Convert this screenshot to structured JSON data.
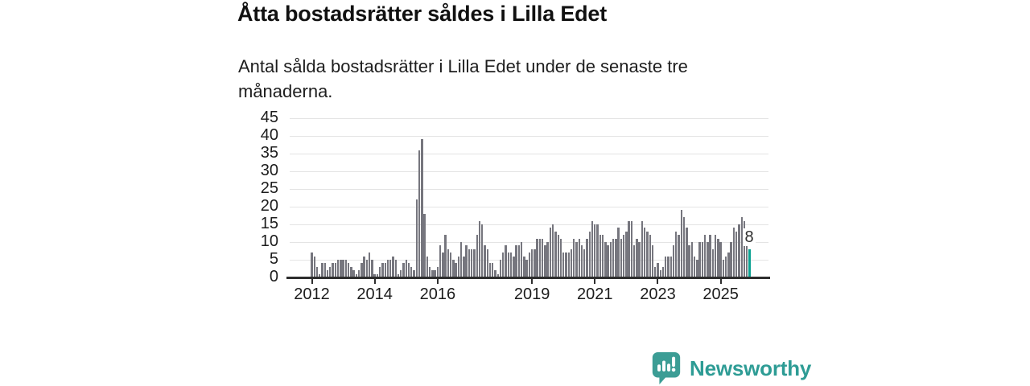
{
  "header": {
    "title": "Åtta bostadsrätter såldes i Lilla Edet",
    "subtitle_lines": [
      "Antal sålda bostadsrätter i Lilla Edet under de senaste tre",
      "månaderna."
    ]
  },
  "chart_data": {
    "type": "bar",
    "title": "Åtta bostadsrätter såldes i Lilla Edet",
    "xlabel": "",
    "ylabel": "",
    "ylim": [
      0,
      45
    ],
    "y_ticks": [
      0,
      5,
      10,
      15,
      20,
      25,
      30,
      35,
      40,
      45
    ],
    "x_tick_labels": [
      "2012",
      "2014",
      "2016",
      "2019",
      "2021",
      "2023",
      "2025"
    ],
    "x_tick_month_index": [
      0,
      24,
      48,
      84,
      108,
      132,
      156
    ],
    "grid": true,
    "legend": false,
    "values": [
      7,
      6,
      3,
      1,
      4,
      4,
      2,
      3,
      4,
      4,
      5,
      5,
      5,
      5,
      4,
      3,
      2,
      1,
      2,
      4,
      6,
      5,
      7,
      5,
      1,
      1,
      3,
      4,
      4,
      5,
      5,
      6,
      5,
      1,
      2,
      4,
      5,
      4,
      3,
      2,
      22,
      36,
      39,
      18,
      6,
      3,
      2,
      2,
      3,
      9,
      7,
      12,
      8,
      7,
      5,
      4,
      6,
      10,
      6,
      9,
      8,
      8,
      8,
      12,
      16,
      15,
      9,
      8,
      4,
      4,
      2,
      1,
      5,
      7,
      9,
      7,
      7,
      6,
      9,
      9,
      10,
      6,
      5,
      7,
      8,
      8,
      11,
      11,
      11,
      9,
      10,
      14,
      15,
      13,
      12,
      11,
      7,
      7,
      7,
      8,
      11,
      10,
      11,
      9,
      8,
      11,
      13,
      16,
      15,
      15,
      12,
      12,
      10,
      9,
      10,
      11,
      11,
      14,
      11,
      12,
      13,
      16,
      16,
      9,
      11,
      10,
      16,
      14,
      13,
      12,
      9,
      3,
      4,
      2,
      3,
      6,
      6,
      6,
      9,
      13,
      12,
      19,
      17,
      14,
      9,
      10,
      6,
      5,
      10,
      10,
      12,
      10,
      12,
      8,
      12,
      11,
      10,
      5,
      6,
      7,
      10,
      14,
      13,
      15,
      17,
      16,
      13,
      8
    ],
    "highlight_last_bar": true,
    "last_value_label": "8",
    "colors": {
      "bar": "#76767e",
      "highlight": "#0aa191",
      "grid": "#e4e4e4",
      "axis": "#2e2e2e",
      "labels": "#1c1c1c"
    }
  },
  "branding": {
    "logo_text": "Newsworthy",
    "logo_color": "#2e9c95",
    "logo_icon": "newsworthy-speech-bubble-chart-icon",
    "logo_icon_color": "#3c9d95"
  }
}
